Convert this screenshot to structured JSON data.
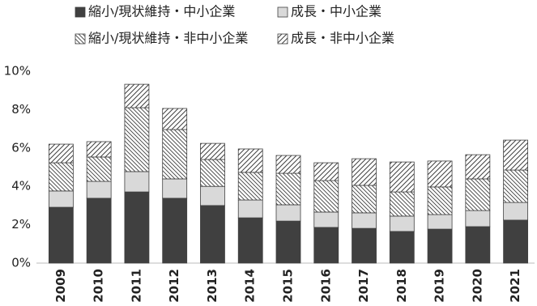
{
  "chart_data": {
    "type": "stacked_bar",
    "categories": [
      "2009",
      "2010",
      "2011",
      "2012",
      "2013",
      "2014",
      "2015",
      "2016",
      "2017",
      "2018",
      "2019",
      "2020",
      "2021"
    ],
    "series": [
      {
        "name": "縮小/現状維持・中小企業",
        "color": "#404040",
        "hatch": "none",
        "values": [
          2.91,
          3.38,
          3.71,
          3.38,
          3.0,
          2.36,
          2.19,
          1.86,
          1.81,
          1.65,
          1.77,
          1.9,
          2.24
        ]
      },
      {
        "name": "成長・中小企業",
        "color": "#d9d9d9",
        "hatch": "none",
        "values": [
          0.85,
          0.88,
          1.06,
          1.01,
          1.0,
          0.93,
          0.85,
          0.8,
          0.81,
          0.8,
          0.76,
          0.84,
          0.92
        ]
      },
      {
        "name": "縮小/現状維持・非中小企業",
        "color": "#404040",
        "hatch": "backslash",
        "values": [
          1.47,
          1.27,
          3.33,
          2.57,
          1.4,
          1.44,
          1.64,
          1.64,
          1.43,
          1.26,
          1.44,
          1.65,
          1.69
        ]
      },
      {
        "name": "成長・非中小企業",
        "color": "#404040",
        "hatch": "slash",
        "values": [
          0.97,
          0.8,
          1.22,
          1.1,
          0.84,
          1.22,
          0.93,
          0.93,
          1.39,
          1.56,
          1.35,
          1.26,
          1.56
        ]
      }
    ],
    "ylim": [
      0,
      10
    ],
    "yticks": [
      {
        "value": 0,
        "label": "0%"
      },
      {
        "value": 2,
        "label": "2%"
      },
      {
        "value": 4,
        "label": "4%"
      },
      {
        "value": 6,
        "label": "6%"
      },
      {
        "value": 8,
        "label": "8%"
      },
      {
        "value": 10,
        "label": "10%"
      }
    ],
    "grid": false
  }
}
